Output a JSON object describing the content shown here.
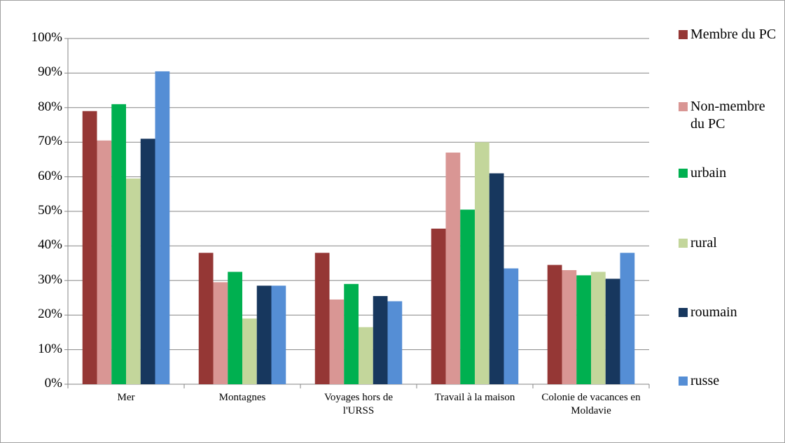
{
  "chart_data": {
    "type": "bar",
    "categories": [
      "Mer",
      "Montagnes",
      "Voyages hors de l'URSS",
      "Travail à la maison",
      "Colonie de vacances en Moldavie"
    ],
    "series": [
      {
        "name": "Membre du PC",
        "color": "#953735",
        "values": [
          79,
          38,
          38,
          45,
          34.5
        ]
      },
      {
        "name": "Non-membre du PC",
        "color": "#d99694",
        "values": [
          70.5,
          29.5,
          24.5,
          67,
          33
        ]
      },
      {
        "name": "urbain",
        "color": "#00b050",
        "values": [
          81,
          32.5,
          29,
          50.5,
          31.5
        ]
      },
      {
        "name": "rural",
        "color": "#c3d69b",
        "values": [
          59.5,
          19,
          16.5,
          70,
          32.5
        ]
      },
      {
        "name": "roumain",
        "color": "#17375e",
        "values": [
          71,
          28.5,
          25.5,
          61,
          30.5
        ]
      },
      {
        "name": "russe",
        "color": "#558ed5",
        "values": [
          90.5,
          28.5,
          24,
          33.5,
          38
        ]
      }
    ],
    "ylim": [
      0,
      100
    ],
    "yticks": [
      {
        "value": 0,
        "label": "0%"
      },
      {
        "value": 10,
        "label": "10%"
      },
      {
        "value": 20,
        "label": "20%"
      },
      {
        "value": 30,
        "label": "30%"
      },
      {
        "value": 40,
        "label": "40%"
      },
      {
        "value": 50,
        "label": "50%"
      },
      {
        "value": 60,
        "label": "60%"
      },
      {
        "value": 70,
        "label": "70%"
      },
      {
        "value": 80,
        "label": "80%"
      },
      {
        "value": 90,
        "label": "90%"
      },
      {
        "value": 100,
        "label": "100%"
      }
    ],
    "grid": true,
    "legend": "right"
  }
}
